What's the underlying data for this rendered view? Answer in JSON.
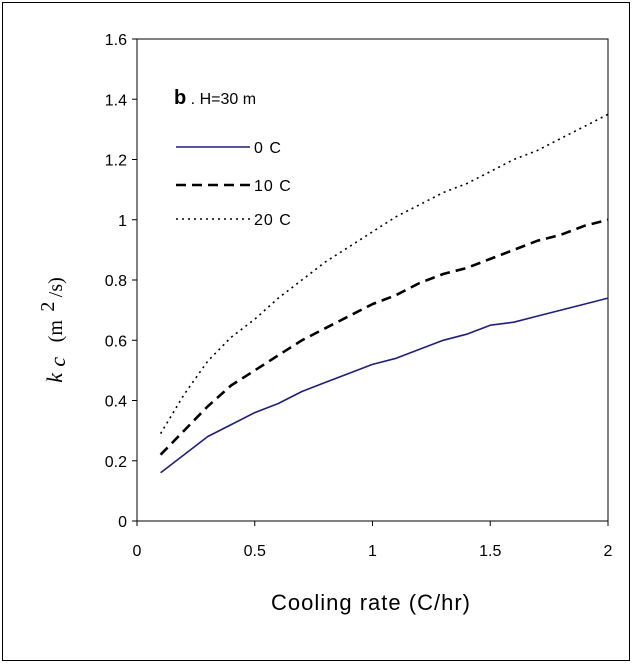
{
  "chart_data": {
    "type": "line",
    "panel_letter": "b",
    "panel_text": ". H=30 m",
    "xlabel": "Cooling rate (C/hr)",
    "ylabel_symbol": "k",
    "ylabel_subscript": "c",
    "ylabel_unit": "(m",
    "ylabel_unit_sup": "2",
    "ylabel_unit_tail": "/s)",
    "xlim": [
      0,
      2
    ],
    "ylim": [
      0,
      1.6
    ],
    "x_ticks": [
      0,
      0.5,
      1,
      1.5,
      2
    ],
    "x_tick_labels": [
      "0",
      "0.5",
      "1",
      "1.5",
      "2"
    ],
    "y_ticks": [
      0,
      0.2,
      0.4,
      0.6,
      0.8,
      1.0,
      1.2,
      1.4,
      1.6
    ],
    "y_tick_labels": [
      "0",
      "0.2",
      "0.4",
      "0.6",
      "0.8",
      "1",
      "1.2",
      "1.4",
      "1.6"
    ],
    "grid": false,
    "legend_position": "top-left",
    "series": [
      {
        "name": "0 C",
        "style": "solid",
        "color": "#1f1f7a",
        "x": [
          0.1,
          0.2,
          0.3,
          0.4,
          0.5,
          0.6,
          0.7,
          0.8,
          0.9,
          1.0,
          1.1,
          1.2,
          1.3,
          1.4,
          1.5,
          1.6,
          1.7,
          1.8,
          1.9,
          2.0
        ],
        "y": [
          0.16,
          0.22,
          0.28,
          0.32,
          0.36,
          0.39,
          0.43,
          0.46,
          0.49,
          0.52,
          0.54,
          0.57,
          0.6,
          0.62,
          0.65,
          0.66,
          0.68,
          0.7,
          0.72,
          0.74
        ]
      },
      {
        "name": "10 C",
        "style": "dashed",
        "color": "#000000",
        "x": [
          0.1,
          0.2,
          0.3,
          0.4,
          0.5,
          0.6,
          0.7,
          0.8,
          0.9,
          1.0,
          1.1,
          1.2,
          1.3,
          1.4,
          1.5,
          1.6,
          1.7,
          1.8,
          1.9,
          2.0
        ],
        "y": [
          0.22,
          0.3,
          0.38,
          0.45,
          0.5,
          0.55,
          0.6,
          0.64,
          0.68,
          0.72,
          0.75,
          0.79,
          0.82,
          0.84,
          0.87,
          0.9,
          0.93,
          0.95,
          0.98,
          1.0
        ]
      },
      {
        "name": "20 C",
        "style": "dotted",
        "color": "#000000",
        "x": [
          0.1,
          0.2,
          0.3,
          0.4,
          0.5,
          0.6,
          0.7,
          0.8,
          0.9,
          1.0,
          1.1,
          1.2,
          1.3,
          1.4,
          1.5,
          1.6,
          1.7,
          1.8,
          1.9,
          2.0
        ],
        "y": [
          0.29,
          0.42,
          0.53,
          0.61,
          0.67,
          0.74,
          0.8,
          0.86,
          0.91,
          0.96,
          1.01,
          1.05,
          1.09,
          1.12,
          1.16,
          1.2,
          1.23,
          1.27,
          1.31,
          1.35
        ]
      }
    ]
  }
}
